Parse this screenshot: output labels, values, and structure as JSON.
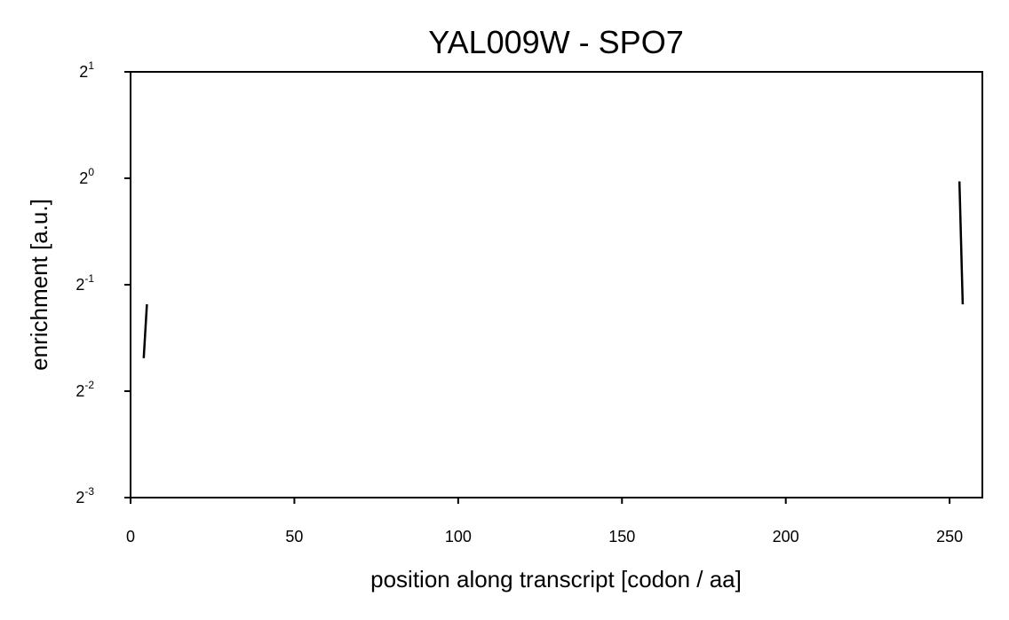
{
  "chart_data": {
    "type": "line",
    "title": "YAL009W - SPO7",
    "xlabel": "position along transcript [codon / aa]",
    "ylabel": "enrichment [a.u.]",
    "xlim": [
      0,
      260
    ],
    "ylim_log2": [
      -3,
      1
    ],
    "y_scale": "log2",
    "x_ticks": [
      0,
      50,
      100,
      150,
      200,
      250
    ],
    "y_ticks": [
      {
        "base": "2",
        "exp": "1",
        "value": 2
      },
      {
        "base": "2",
        "exp": "0",
        "value": 1
      },
      {
        "base": "2",
        "exp": "-1",
        "value": 0.5
      },
      {
        "base": "2",
        "exp": "-2",
        "value": 0.25
      },
      {
        "base": "2",
        "exp": "-3",
        "value": 0.125
      }
    ],
    "grid": false,
    "legend": "none",
    "series": [
      {
        "color": "#000000",
        "segments": [
          [
            [
              4,
              0.31
            ],
            [
              5,
              0.44
            ]
          ],
          [
            [
              253,
              0.98
            ],
            [
              254,
              0.44
            ]
          ]
        ]
      }
    ]
  }
}
